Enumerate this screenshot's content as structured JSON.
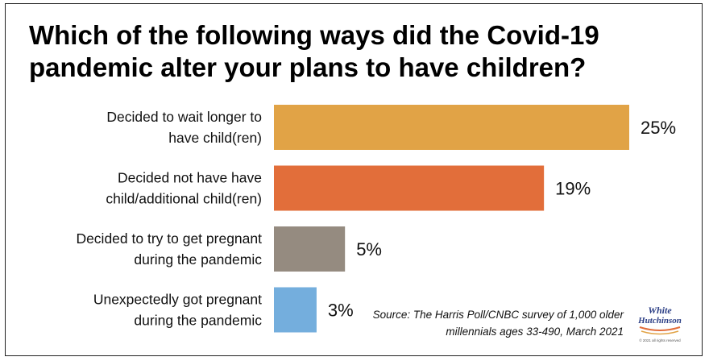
{
  "title": "Which of the following ways did the Covid-19 pandemic alter your plans to have children?",
  "source": {
    "line1": "Source: The Harris Poll/CNBC survey of 1,000 older",
    "line2": "millennials ages 33-490, March 2021"
  },
  "logo": {
    "line1": "White",
    "line2": "Hutchinson",
    "tagline": "© 2021 all rights reserved"
  },
  "chart_data": {
    "type": "bar",
    "orientation": "horizontal",
    "categories": [
      [
        "Decided to wait longer to",
        "have child(ren)"
      ],
      [
        "Decided not have have",
        "child/additional child(ren)"
      ],
      [
        "Decided to try to get pregnant",
        "during the pandemic"
      ],
      [
        "Unexpectedly got pregnant",
        "during the pandemic"
      ]
    ],
    "values": [
      25,
      19,
      5,
      3
    ],
    "value_labels": [
      "25%",
      "19%",
      "5%",
      "3%"
    ],
    "colors": [
      "#E1A346",
      "#E26E3A",
      "#958B80",
      "#74AEDD"
    ],
    "xlim": [
      0,
      25
    ],
    "grid": false,
    "legend": "none"
  }
}
